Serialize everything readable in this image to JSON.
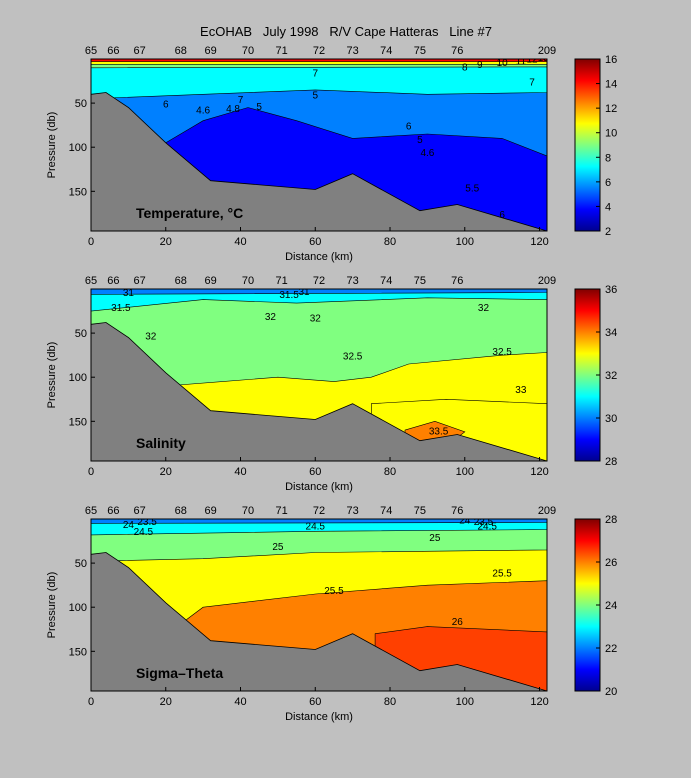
{
  "title": "EcOHAB   July 1998   R/V Cape Hatteras   Line #7",
  "colors": {
    "background": "#c0c0c0",
    "bottom": "#808080",
    "colormap": [
      "#00008f",
      "#0000ff",
      "#0080ff",
      "#00ffff",
      "#80ff80",
      "#ffff00",
      "#ff8000",
      "#ff0000",
      "#800000"
    ]
  },
  "chart_data": [
    {
      "type": "heatmap",
      "panel_label": "Temperature, °C",
      "xlabel": "Distance (km)",
      "ylabel": "Pressure (db)",
      "xlim": [
        0,
        122
      ],
      "ylim": [
        0,
        195
      ],
      "y_inverted": true,
      "x_ticks": [
        "0",
        "20",
        "40",
        "60",
        "80",
        "100",
        "120"
      ],
      "y_ticks": [
        "50",
        "100",
        "150"
      ],
      "station_labels": [
        "65",
        "66",
        "67",
        "68",
        "69",
        "70",
        "71",
        "72",
        "73",
        "74",
        "75",
        "76",
        "209"
      ],
      "station_x_km": [
        0,
        6,
        13,
        24,
        32,
        42,
        51,
        61,
        70,
        79,
        88,
        98,
        122
      ],
      "colorbar": {
        "min": 2,
        "max": 16,
        "ticks": [
          "2",
          "4",
          "6",
          "8",
          "10",
          "12",
          "14",
          "16"
        ]
      },
      "bottom_profile": {
        "x": [
          0,
          4,
          10,
          20,
          32,
          60,
          70,
          88,
          98,
          122
        ],
        "y": [
          40,
          38,
          55,
          95,
          138,
          148,
          130,
          172,
          165,
          195
        ]
      },
      "contour_labels": [
        "7",
        "6",
        "5",
        "4.6",
        "4.8",
        "5",
        "7",
        "6",
        "5",
        "4.6",
        "5.5",
        "6",
        "7",
        "8",
        "9",
        "10",
        "11",
        "12",
        "15"
      ],
      "colorbar_colors": [
        "#00008f",
        "#0000ff",
        "#0080ff",
        "#00ffff",
        "#80ff80",
        "#ffff00",
        "#ff8000",
        "#ff0000",
        "#800000"
      ]
    },
    {
      "type": "heatmap",
      "panel_label": "Salinity",
      "xlabel": "Distance (km)",
      "ylabel": "Pressure (db)",
      "xlim": [
        0,
        122
      ],
      "ylim": [
        0,
        195
      ],
      "y_inverted": true,
      "x_ticks": [
        "0",
        "20",
        "40",
        "60",
        "80",
        "100",
        "120"
      ],
      "y_ticks": [
        "50",
        "100",
        "150"
      ],
      "station_labels": [
        "65",
        "66",
        "67",
        "68",
        "69",
        "70",
        "71",
        "72",
        "73",
        "74",
        "75",
        "76",
        "209"
      ],
      "station_x_km": [
        0,
        6,
        13,
        24,
        32,
        42,
        51,
        61,
        70,
        79,
        88,
        98,
        122
      ],
      "colorbar": {
        "min": 28,
        "max": 36,
        "ticks": [
          "28",
          "30",
          "32",
          "34",
          "36"
        ]
      },
      "bottom_profile": {
        "x": [
          0,
          4,
          10,
          20,
          32,
          60,
          70,
          88,
          98,
          122
        ],
        "y": [
          40,
          38,
          55,
          95,
          138,
          148,
          130,
          172,
          165,
          195
        ]
      },
      "contour_labels": [
        "31",
        "31.5",
        "32",
        "32",
        "32",
        "32",
        "32.5",
        "32.5",
        "33",
        "33.5",
        "31",
        "31.5"
      ],
      "colorbar_colors": [
        "#00008f",
        "#0000ff",
        "#0080ff",
        "#00ffff",
        "#80ff80",
        "#ffff00",
        "#ff8000",
        "#ff0000",
        "#800000"
      ]
    },
    {
      "type": "heatmap",
      "panel_label": "Sigma–Theta",
      "xlabel": "Distance (km)",
      "ylabel": "Pressure (db)",
      "xlim": [
        0,
        122
      ],
      "ylim": [
        0,
        195
      ],
      "y_inverted": true,
      "x_ticks": [
        "0",
        "20",
        "40",
        "60",
        "80",
        "100",
        "120"
      ],
      "y_ticks": [
        "50",
        "100",
        "150"
      ],
      "station_labels": [
        "65",
        "66",
        "67",
        "68",
        "69",
        "70",
        "71",
        "72",
        "73",
        "74",
        "75",
        "76",
        "209"
      ],
      "station_x_km": [
        0,
        6,
        13,
        24,
        32,
        42,
        51,
        61,
        70,
        79,
        88,
        98,
        122
      ],
      "colorbar": {
        "min": 20,
        "max": 28,
        "ticks": [
          "20",
          "22",
          "24",
          "26",
          "28"
        ]
      },
      "bottom_profile": {
        "x": [
          0,
          4,
          10,
          20,
          32,
          60,
          70,
          88,
          98,
          122
        ],
        "y": [
          40,
          38,
          55,
          95,
          138,
          148,
          130,
          172,
          165,
          195
        ]
      },
      "contour_labels": [
        "23.5",
        "24",
        "24.5",
        "24.5",
        "25",
        "25",
        "25.5",
        "25.5",
        "26",
        "24",
        "24.5",
        "23.5"
      ],
      "colorbar_colors": [
        "#00008f",
        "#0000ff",
        "#0080ff",
        "#00ffff",
        "#80ff80",
        "#ffff00",
        "#ff8000",
        "#ff0000",
        "#800000"
      ]
    }
  ]
}
